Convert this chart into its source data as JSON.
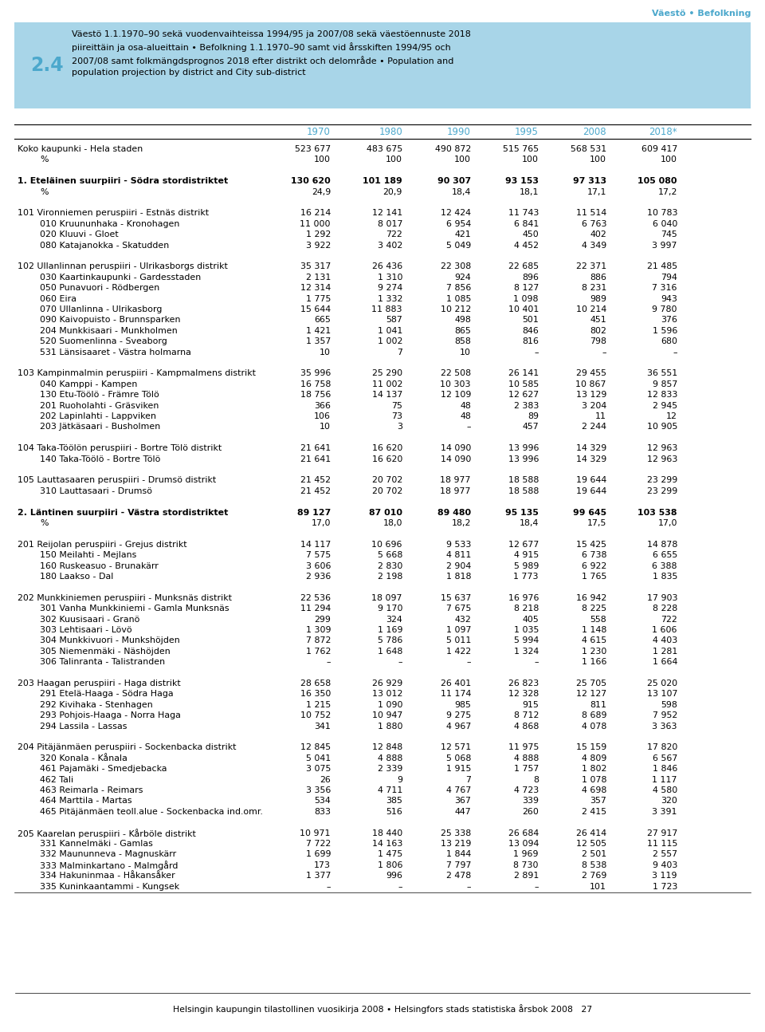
{
  "header_box_color": "#A8D5E8",
  "header_number": "2.4",
  "header_number_color": "#4CA8CC",
  "header_title": "Väestö 1.1.1970–90 sekä vuodenvaihteissa 1994/95 ja 2007/08 sekä väestöennuste 2018\npiireittäin ja osa-alueittain • Befolkning 1.1.1970–90 samt vid årsskiften 1994/95 och\n2007/08 samt folkmängdsprognos 2018 efter distrikt och delområde • Population and\npopulation projection by district and City sub-district",
  "top_right_label": "Väestö • Befolkning",
  "top_right_color": "#4CA8CC",
  "col_years": [
    "1970",
    "1980",
    "1990",
    "1995",
    "2008",
    "2018*"
  ],
  "col_year_color": "#4CA8CC",
  "footer_text": "Helsingin kaupungin tilastollinen vuosikirja 2008 • Helsingfors stads statistiska årsbok 2008   27",
  "rows": [
    {
      "label": "Koko kaupunki - Hela staden",
      "indent": 0,
      "bold": false,
      "vals": [
        "523 677",
        "483 675",
        "490 872",
        "515 765",
        "568 531",
        "609 417"
      ]
    },
    {
      "label": "%",
      "indent": 1,
      "bold": false,
      "vals": [
        "100",
        "100",
        "100",
        "100",
        "100",
        "100"
      ]
    },
    {
      "label": "",
      "indent": 0,
      "bold": false,
      "vals": [
        "",
        "",
        "",
        "",
        "",
        ""
      ]
    },
    {
      "label": "1. Eteläinen suurpiiri - Södra stordistriktet",
      "indent": 0,
      "bold": true,
      "vals": [
        "130 620",
        "101 189",
        "90 307",
        "93 153",
        "97 313",
        "105 080"
      ]
    },
    {
      "label": "%",
      "indent": 1,
      "bold": false,
      "vals": [
        "24,9",
        "20,9",
        "18,4",
        "18,1",
        "17,1",
        "17,2"
      ]
    },
    {
      "label": "",
      "indent": 0,
      "bold": false,
      "vals": [
        "",
        "",
        "",
        "",
        "",
        ""
      ]
    },
    {
      "label": "101 Vironniemen peruspiiri - Estnäs distrikt",
      "indent": 0,
      "bold": false,
      "vals": [
        "16 214",
        "12 141",
        "12 424",
        "11 743",
        "11 514",
        "10 783"
      ]
    },
    {
      "label": "010 Kruununhaka - Kronohagen",
      "indent": 1,
      "bold": false,
      "vals": [
        "11 000",
        "8 017",
        "6 954",
        "6 841",
        "6 763",
        "6 040"
      ]
    },
    {
      "label": "020 Kluuvi - Gloet",
      "indent": 1,
      "bold": false,
      "vals": [
        "1 292",
        "722",
        "421",
        "450",
        "402",
        "745"
      ]
    },
    {
      "label": "080 Katajanokka - Skatudden",
      "indent": 1,
      "bold": false,
      "vals": [
        "3 922",
        "3 402",
        "5 049",
        "4 452",
        "4 349",
        "3 997"
      ]
    },
    {
      "label": "",
      "indent": 0,
      "bold": false,
      "vals": [
        "",
        "",
        "",
        "",
        "",
        ""
      ]
    },
    {
      "label": "102 Ullanlinnan peruspiiri - Ulrikasborgs distrikt",
      "indent": 0,
      "bold": false,
      "vals": [
        "35 317",
        "26 436",
        "22 308",
        "22 685",
        "22 371",
        "21 485"
      ]
    },
    {
      "label": "030 Kaartinkaupunki - Gardesstaden",
      "indent": 1,
      "bold": false,
      "vals": [
        "2 131",
        "1 310",
        "924",
        "896",
        "886",
        "794"
      ]
    },
    {
      "label": "050 Punavuori - Rödbergen",
      "indent": 1,
      "bold": false,
      "vals": [
        "12 314",
        "9 274",
        "7 856",
        "8 127",
        "8 231",
        "7 316"
      ]
    },
    {
      "label": "060 Eira",
      "indent": 1,
      "bold": false,
      "vals": [
        "1 775",
        "1 332",
        "1 085",
        "1 098",
        "989",
        "943"
      ]
    },
    {
      "label": "070 Ullanlinna - Ulrikasborg",
      "indent": 1,
      "bold": false,
      "vals": [
        "15 644",
        "11 883",
        "10 212",
        "10 401",
        "10 214",
        "9 780"
      ]
    },
    {
      "label": "090 Kaivopuisto - Brunnsparken",
      "indent": 1,
      "bold": false,
      "vals": [
        "665",
        "587",
        "498",
        "501",
        "451",
        "376"
      ]
    },
    {
      "label": "204 Munkkisaari - Munkholmen",
      "indent": 1,
      "bold": false,
      "vals": [
        "1 421",
        "1 041",
        "865",
        "846",
        "802",
        "1 596"
      ]
    },
    {
      "label": "520 Suomenlinna - Sveaborg",
      "indent": 1,
      "bold": false,
      "vals": [
        "1 357",
        "1 002",
        "858",
        "816",
        "798",
        "680"
      ]
    },
    {
      "label": "531 Länsisaaret - Västra holmarna",
      "indent": 1,
      "bold": false,
      "vals": [
        "10",
        "7",
        "10",
        "–",
        "–",
        "–"
      ]
    },
    {
      "label": "",
      "indent": 0,
      "bold": false,
      "vals": [
        "",
        "",
        "",
        "",
        "",
        ""
      ]
    },
    {
      "label": "103 Kampinmalmin peruspiiri - Kampmalmens distrikt",
      "indent": 0,
      "bold": false,
      "vals": [
        "35 996",
        "25 290",
        "22 508",
        "26 141",
        "29 455",
        "36 551"
      ]
    },
    {
      "label": "040 Kamppi - Kampen",
      "indent": 1,
      "bold": false,
      "vals": [
        "16 758",
        "11 002",
        "10 303",
        "10 585",
        "10 867",
        "9 857"
      ]
    },
    {
      "label": "130 Etu-Töölö - Främre Tölö",
      "indent": 1,
      "bold": false,
      "vals": [
        "18 756",
        "14 137",
        "12 109",
        "12 627",
        "13 129",
        "12 833"
      ]
    },
    {
      "label": "201 Ruoholahti - Gräsviken",
      "indent": 1,
      "bold": false,
      "vals": [
        "366",
        "75",
        "48",
        "2 383",
        "3 204",
        "2 945"
      ]
    },
    {
      "label": "202 Lapinlahti - Lappviken",
      "indent": 1,
      "bold": false,
      "vals": [
        "106",
        "73",
        "48",
        "89",
        "11",
        "12"
      ]
    },
    {
      "label": "203 Jätkäsaari - Busholmen",
      "indent": 1,
      "bold": false,
      "vals": [
        "10",
        "3",
        "–",
        "457",
        "2 244",
        "10 905"
      ]
    },
    {
      "label": "",
      "indent": 0,
      "bold": false,
      "vals": [
        "",
        "",
        "",
        "",
        "",
        ""
      ]
    },
    {
      "label": "104 Taka-Töölön peruspiiri - Bortre Tölö distrikt",
      "indent": 0,
      "bold": false,
      "vals": [
        "21 641",
        "16 620",
        "14 090",
        "13 996",
        "14 329",
        "12 963"
      ]
    },
    {
      "label": "140 Taka-Töölö - Bortre Tölö",
      "indent": 1,
      "bold": false,
      "vals": [
        "21 641",
        "16 620",
        "14 090",
        "13 996",
        "14 329",
        "12 963"
      ]
    },
    {
      "label": "",
      "indent": 0,
      "bold": false,
      "vals": [
        "",
        "",
        "",
        "",
        "",
        ""
      ]
    },
    {
      "label": "105 Lauttasaaren peruspiiri - Drumsö distrikt",
      "indent": 0,
      "bold": false,
      "vals": [
        "21 452",
        "20 702",
        "18 977",
        "18 588",
        "19 644",
        "23 299"
      ]
    },
    {
      "label": "310 Lauttasaari - Drumsö",
      "indent": 1,
      "bold": false,
      "vals": [
        "21 452",
        "20 702",
        "18 977",
        "18 588",
        "19 644",
        "23 299"
      ]
    },
    {
      "label": "",
      "indent": 0,
      "bold": false,
      "vals": [
        "",
        "",
        "",
        "",
        "",
        ""
      ]
    },
    {
      "label": "2. Läntinen suurpiiri - Västra stordistriktet",
      "indent": 0,
      "bold": true,
      "vals": [
        "89 127",
        "87 010",
        "89 480",
        "95 135",
        "99 645",
        "103 538"
      ]
    },
    {
      "label": "%",
      "indent": 1,
      "bold": false,
      "vals": [
        "17,0",
        "18,0",
        "18,2",
        "18,4",
        "17,5",
        "17,0"
      ]
    },
    {
      "label": "",
      "indent": 0,
      "bold": false,
      "vals": [
        "",
        "",
        "",
        "",
        "",
        ""
      ]
    },
    {
      "label": "201 Reijolan peruspiiri - Grejus distrikt",
      "indent": 0,
      "bold": false,
      "vals": [
        "14 117",
        "10 696",
        "9 533",
        "12 677",
        "15 425",
        "14 878"
      ]
    },
    {
      "label": "150 Meilahti - Mejlans",
      "indent": 1,
      "bold": false,
      "vals": [
        "7 575",
        "5 668",
        "4 811",
        "4 915",
        "6 738",
        "6 655"
      ]
    },
    {
      "label": "160 Ruskeasuo - Brunakärr",
      "indent": 1,
      "bold": false,
      "vals": [
        "3 606",
        "2 830",
        "2 904",
        "5 989",
        "6 922",
        "6 388"
      ]
    },
    {
      "label": "180 Laakso - Dal",
      "indent": 1,
      "bold": false,
      "vals": [
        "2 936",
        "2 198",
        "1 818",
        "1 773",
        "1 765",
        "1 835"
      ]
    },
    {
      "label": "",
      "indent": 0,
      "bold": false,
      "vals": [
        "",
        "",
        "",
        "",
        "",
        ""
      ]
    },
    {
      "label": "202 Munkkiniemen peruspiiri - Munksnäs distrikt",
      "indent": 0,
      "bold": false,
      "vals": [
        "22 536",
        "18 097",
        "15 637",
        "16 976",
        "16 942",
        "17 903"
      ]
    },
    {
      "label": "301 Vanha Munkkiniemi - Gamla Munksnäs",
      "indent": 1,
      "bold": false,
      "vals": [
        "11 294",
        "9 170",
        "7 675",
        "8 218",
        "8 225",
        "8 228"
      ]
    },
    {
      "label": "302 Kuusisaari - Granö",
      "indent": 1,
      "bold": false,
      "vals": [
        "299",
        "324",
        "432",
        "405",
        "558",
        "722"
      ]
    },
    {
      "label": "303 Lehtisaari - Lövö",
      "indent": 1,
      "bold": false,
      "vals": [
        "1 309",
        "1 169",
        "1 097",
        "1 035",
        "1 148",
        "1 606"
      ]
    },
    {
      "label": "304 Munkkivuori - Munkshöjden",
      "indent": 1,
      "bold": false,
      "vals": [
        "7 872",
        "5 786",
        "5 011",
        "5 994",
        "4 615",
        "4 403"
      ]
    },
    {
      "label": "305 Niemenmäki - Näshöjden",
      "indent": 1,
      "bold": false,
      "vals": [
        "1 762",
        "1 648",
        "1 422",
        "1 324",
        "1 230",
        "1 281"
      ]
    },
    {
      "label": "306 Talinranta - Talistranden",
      "indent": 1,
      "bold": false,
      "vals": [
        "–",
        "–",
        "–",
        "–",
        "1 166",
        "1 664"
      ]
    },
    {
      "label": "",
      "indent": 0,
      "bold": false,
      "vals": [
        "",
        "",
        "",
        "",
        "",
        ""
      ]
    },
    {
      "label": "203 Haagan peruspiiri - Haga distrikt",
      "indent": 0,
      "bold": false,
      "vals": [
        "28 658",
        "26 929",
        "26 401",
        "26 823",
        "25 705",
        "25 020"
      ]
    },
    {
      "label": "291 Etelä-Haaga - Södra Haga",
      "indent": 1,
      "bold": false,
      "vals": [
        "16 350",
        "13 012",
        "11 174",
        "12 328",
        "12 127",
        "13 107"
      ]
    },
    {
      "label": "292 Kivihaka - Stenhagen",
      "indent": 1,
      "bold": false,
      "vals": [
        "1 215",
        "1 090",
        "985",
        "915",
        "811",
        "598"
      ]
    },
    {
      "label": "293 Pohjois-Haaga - Norra Haga",
      "indent": 1,
      "bold": false,
      "vals": [
        "10 752",
        "10 947",
        "9 275",
        "8 712",
        "8 689",
        "7 952"
      ]
    },
    {
      "label": "294 Lassila - Lassas",
      "indent": 1,
      "bold": false,
      "vals": [
        "341",
        "1 880",
        "4 967",
        "4 868",
        "4 078",
        "3 363"
      ]
    },
    {
      "label": "",
      "indent": 0,
      "bold": false,
      "vals": [
        "",
        "",
        "",
        "",
        "",
        ""
      ]
    },
    {
      "label": "204 Pitäjänmäen peruspiiri - Sockenbacka distrikt",
      "indent": 0,
      "bold": false,
      "vals": [
        "12 845",
        "12 848",
        "12 571",
        "11 975",
        "15 159",
        "17 820"
      ]
    },
    {
      "label": "320 Konala - Kånala",
      "indent": 1,
      "bold": false,
      "vals": [
        "5 041",
        "4 888",
        "5 068",
        "4 888",
        "4 809",
        "6 567"
      ]
    },
    {
      "label": "461 Pajamäki - Smedjebacka",
      "indent": 1,
      "bold": false,
      "vals": [
        "3 075",
        "2 339",
        "1 915",
        "1 757",
        "1 802",
        "1 846"
      ]
    },
    {
      "label": "462 Tali",
      "indent": 1,
      "bold": false,
      "vals": [
        "26",
        "9",
        "7",
        "8",
        "1 078",
        "1 117"
      ]
    },
    {
      "label": "463 Reimarla - Reimars",
      "indent": 1,
      "bold": false,
      "vals": [
        "3 356",
        "4 711",
        "4 767",
        "4 723",
        "4 698",
        "4 580"
      ]
    },
    {
      "label": "464 Marttila - Martas",
      "indent": 1,
      "bold": false,
      "vals": [
        "534",
        "385",
        "367",
        "339",
        "357",
        "320"
      ]
    },
    {
      "label": "465 Pitäjänmäen teoll.alue - Sockenbacka ind.omr.",
      "indent": 1,
      "bold": false,
      "vals": [
        "833",
        "516",
        "447",
        "260",
        "2 415",
        "3 391"
      ]
    },
    {
      "label": "",
      "indent": 0,
      "bold": false,
      "vals": [
        "",
        "",
        "",
        "",
        "",
        ""
      ]
    },
    {
      "label": "205 Kaarelan peruspiiri - Kårböle distrikt",
      "indent": 0,
      "bold": false,
      "vals": [
        "10 971",
        "18 440",
        "25 338",
        "26 684",
        "26 414",
        "27 917"
      ]
    },
    {
      "label": "331 Kannelmäki - Gamlas",
      "indent": 1,
      "bold": false,
      "vals": [
        "7 722",
        "14 163",
        "13 219",
        "13 094",
        "12 505",
        "11 115"
      ]
    },
    {
      "label": "332 Maununneva - Magnuskärr",
      "indent": 1,
      "bold": false,
      "vals": [
        "1 699",
        "1 475",
        "1 844",
        "1 969",
        "2 501",
        "2 557"
      ]
    },
    {
      "label": "333 Malminkartano - Malmgård",
      "indent": 1,
      "bold": false,
      "vals": [
        "173",
        "1 806",
        "7 797",
        "8 730",
        "8 538",
        "9 403"
      ]
    },
    {
      "label": "334 Hakuninmaa - Håkansåker",
      "indent": 1,
      "bold": false,
      "vals": [
        "1 377",
        "996",
        "2 478",
        "2 891",
        "2 769",
        "3 119"
      ]
    },
    {
      "label": "335 Kuninkaantammi - Kungsek",
      "indent": 1,
      "bold": false,
      "vals": [
        "–",
        "–",
        "–",
        "–",
        "101",
        "1 723"
      ]
    }
  ]
}
